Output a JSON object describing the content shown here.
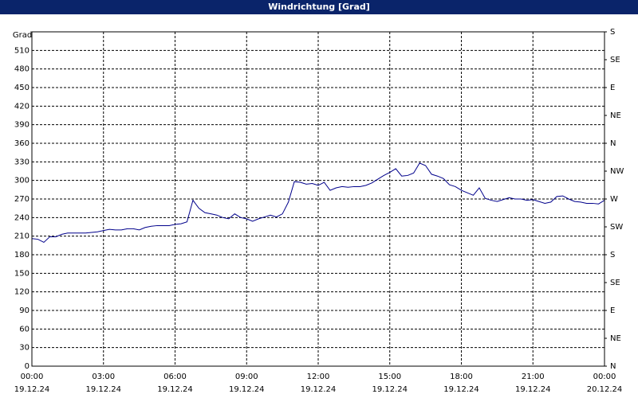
{
  "chart_data": {
    "type": "line",
    "title": "Windrichtung [Grad]",
    "y_label": "Grad",
    "color": "#00008b",
    "grid": true,
    "x": [
      0,
      0.25,
      0.5,
      0.75,
      1,
      1.25,
      1.5,
      1.75,
      2,
      2.25,
      2.5,
      2.75,
      3,
      3.25,
      3.5,
      3.75,
      4,
      4.25,
      4.5,
      4.75,
      5,
      5.25,
      5.5,
      5.75,
      6,
      6.25,
      6.5,
      6.75,
      7,
      7.25,
      7.5,
      7.75,
      8,
      8.25,
      8.5,
      8.75,
      9,
      9.25,
      9.5,
      9.75,
      10,
      10.25,
      10.5,
      10.75,
      11,
      11.25,
      11.5,
      11.75,
      12,
      12.25,
      12.5,
      12.75,
      13,
      13.25,
      13.5,
      13.75,
      14,
      14.25,
      14.5,
      14.75,
      15,
      15.25,
      15.5,
      15.75,
      16,
      16.25,
      16.5,
      16.75,
      17,
      17.25,
      17.5,
      17.75,
      18,
      18.25,
      18.5,
      18.75,
      19,
      19.25,
      19.5,
      19.75,
      20,
      20.25,
      20.5,
      20.75,
      21,
      21.25,
      21.5,
      21.75,
      22,
      22.25,
      22.5,
      22.75,
      23,
      23.25,
      23.5,
      23.75,
      24
    ],
    "values": [
      206,
      205,
      200,
      209,
      209,
      213,
      215,
      215,
      215,
      215,
      216,
      217,
      219,
      221,
      220,
      220,
      222,
      222,
      220,
      224,
      226,
      227,
      227,
      227,
      229,
      230,
      233,
      268,
      255,
      248,
      246,
      244,
      240,
      238,
      246,
      240,
      238,
      234,
      238,
      241,
      244,
      241,
      246,
      265,
      298,
      297,
      294,
      295,
      292,
      297,
      284,
      288,
      290,
      289,
      290,
      290,
      292,
      296,
      302,
      308,
      313,
      319,
      307,
      308,
      312,
      328,
      324,
      310,
      307,
      303,
      293,
      290,
      284,
      280,
      276,
      288,
      271,
      268,
      266,
      269,
      272,
      270,
      270,
      268,
      269,
      266,
      263,
      265,
      274,
      275,
      270,
      266,
      265,
      263,
      263,
      262,
      268
    ],
    "xlim": [
      0,
      24
    ],
    "xticks": [
      {
        "value": 0,
        "label": "00:00"
      },
      {
        "value": 3,
        "label": "03:00"
      },
      {
        "value": 6,
        "label": "06:00"
      },
      {
        "value": 9,
        "label": "09:00"
      },
      {
        "value": 12,
        "label": "12:00"
      },
      {
        "value": 15,
        "label": "15:00"
      },
      {
        "value": 18,
        "label": "18:00"
      },
      {
        "value": 21,
        "label": "21:00"
      },
      {
        "value": 24,
        "label": "00:00"
      }
    ],
    "xtick_dates": [
      "19.12.24",
      "19.12.24",
      "19.12.24",
      "19.12.24",
      "19.12.24",
      "19.12.24",
      "19.12.24",
      "19.12.24",
      "20.12.24"
    ],
    "ylim": [
      0,
      540
    ],
    "yticks": [
      0,
      30,
      60,
      90,
      120,
      150,
      180,
      210,
      240,
      270,
      300,
      330,
      360,
      390,
      420,
      450,
      480,
      510
    ],
    "y2lim": [
      0,
      540
    ],
    "y2ticks": [
      {
        "value": 0,
        "label": "N"
      },
      {
        "value": 45,
        "label": "NE"
      },
      {
        "value": 90,
        "label": "E"
      },
      {
        "value": 135,
        "label": "SE"
      },
      {
        "value": 180,
        "label": "S"
      },
      {
        "value": 225,
        "label": "SW"
      },
      {
        "value": 270,
        "label": "W"
      },
      {
        "value": 315,
        "label": "NW"
      },
      {
        "value": 360,
        "label": "N"
      },
      {
        "value": 405,
        "label": "NE"
      },
      {
        "value": 450,
        "label": "E"
      },
      {
        "value": 495,
        "label": "SE"
      },
      {
        "value": 540,
        "label": "S"
      }
    ]
  }
}
